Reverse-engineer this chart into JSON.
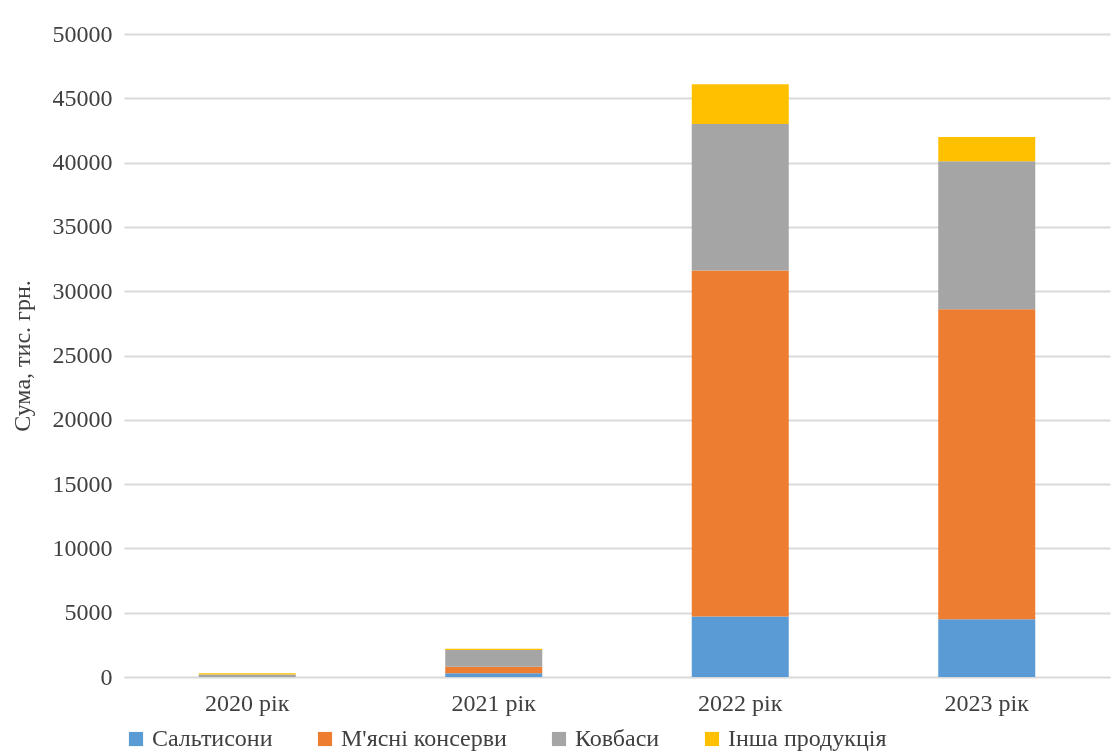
{
  "chart_data": {
    "type": "bar",
    "stacked": true,
    "ylabel": "Сума, тис. грн.",
    "categories": [
      "2020 рік",
      "2021 рік",
      "2022 рік",
      "2023 рік"
    ],
    "series": [
      {
        "name": "Сальтисони",
        "color": "#5b9bd5",
        "values": [
          0,
          300,
          4700,
          4500
        ]
      },
      {
        "name": "М'ясні консерви",
        "color": "#ed7d31",
        "values": [
          0,
          500,
          26900,
          24100
        ]
      },
      {
        "name": "Ковбаси",
        "color": "#a5a5a5",
        "values": [
          200,
          1300,
          11400,
          11500
        ]
      },
      {
        "name": "Інша продукція",
        "color": "#ffc000",
        "values": [
          100,
          100,
          3100,
          1900
        ]
      }
    ],
    "ylim": [
      0,
      50000
    ],
    "yticks": [
      0,
      5000,
      10000,
      15000,
      20000,
      25000,
      30000,
      35000,
      40000,
      45000,
      50000
    ],
    "grid": "y",
    "legend": "bottom"
  }
}
